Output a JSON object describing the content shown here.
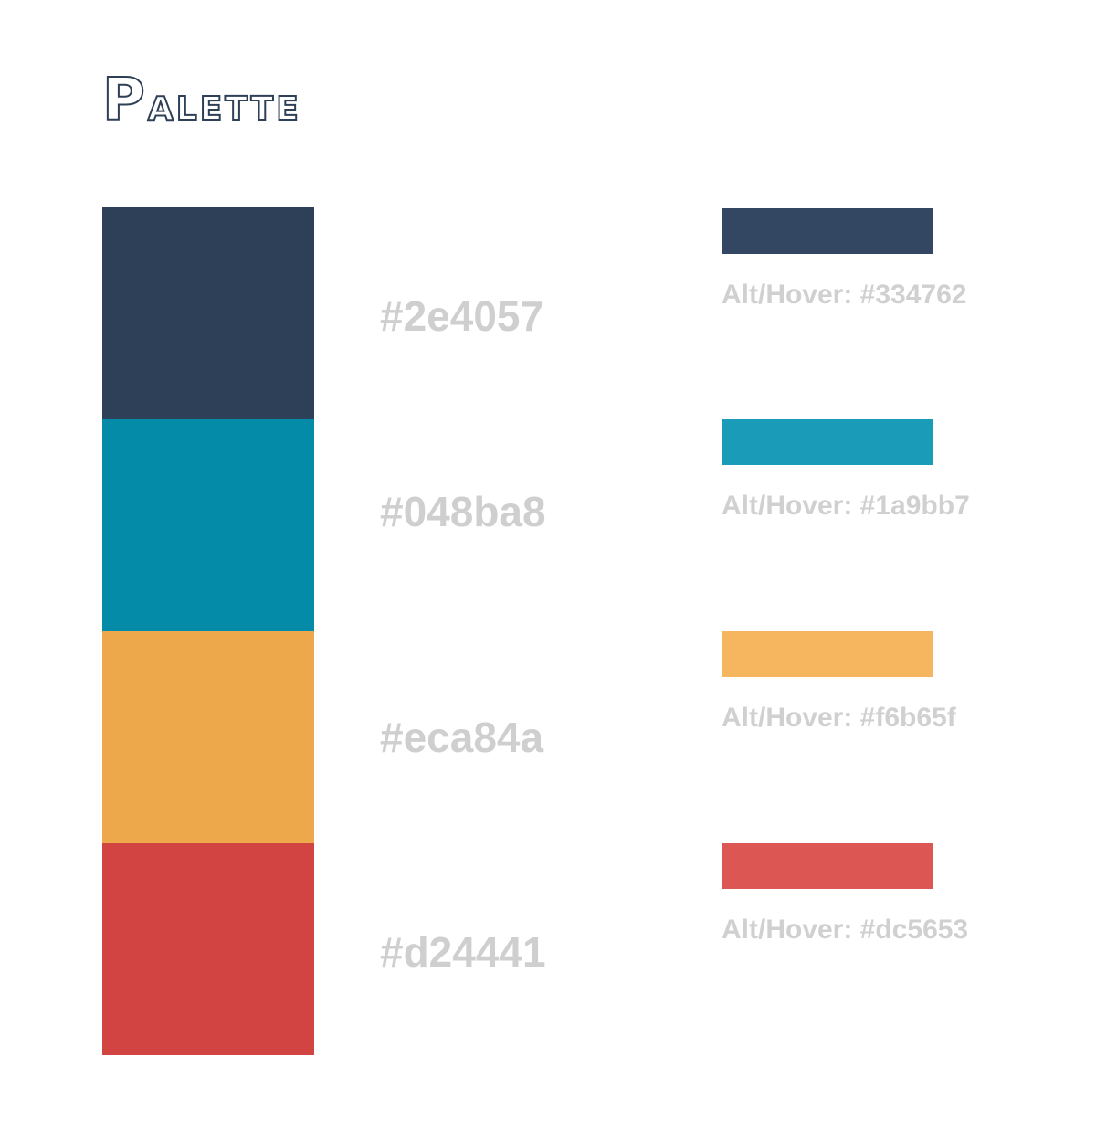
{
  "title": {
    "text": "Palette",
    "first_letter": "P",
    "rest": "alette",
    "color": "#2e4057"
  },
  "colors": [
    {
      "main_hex": "#2e4057",
      "main_label": "#2e4057",
      "alt_hex": "#334762",
      "alt_label": "Alt/Hover: #334762"
    },
    {
      "main_hex": "#048ba8",
      "main_label": "#048ba8",
      "alt_hex": "#1a9bb7",
      "alt_label": "Alt/Hover: #1a9bb7"
    },
    {
      "main_hex": "#eca84a",
      "main_label": "#eca84a",
      "alt_hex": "#f6b65f",
      "alt_label": "Alt/Hover: #f6b65f"
    },
    {
      "main_hex": "#d24441",
      "main_label": "#d24441",
      "alt_hex": "#dc5653",
      "alt_label": "Alt/Hover: #dc5653"
    }
  ],
  "label_color": "#cfcfcf"
}
